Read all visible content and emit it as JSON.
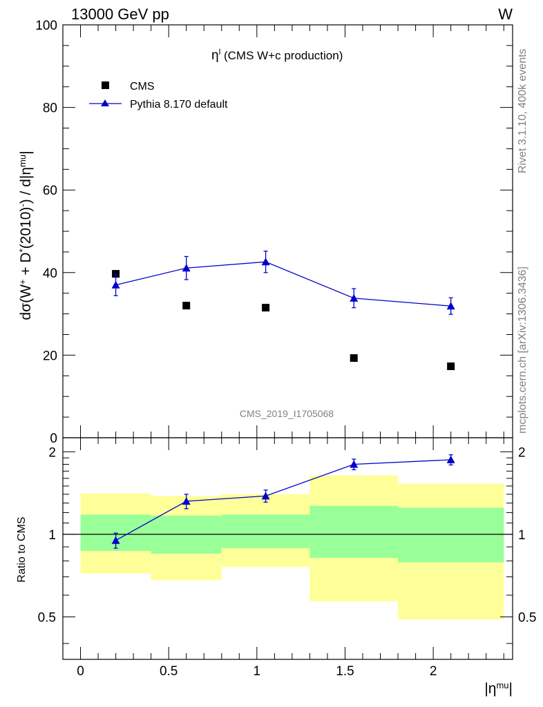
{
  "header": {
    "left_title": "13000 GeV pp",
    "right_title": "W"
  },
  "side_labels": {
    "rivet": "Rivet 3.1.10,  400k events",
    "url": "mcplots.cern.ch [arXiv:1306.3436]"
  },
  "watermark": "CMS_2019_I1705068",
  "colors": {
    "mc": "#0000cc",
    "data": "#000000",
    "band_inner": "#99ff99",
    "band_outer": "#ffff99"
  },
  "chart_data": [
    {
      "type": "scatter",
      "title": "η^l (CMS W+c production)",
      "ylabel": "dσ(W+ + D*(2010)-) / d|η^mu|",
      "ylim": [
        0,
        100
      ],
      "yticks": [
        "0",
        "20",
        "40",
        "60",
        "80",
        "100"
      ],
      "legend_placement": "top-left",
      "series": [
        {
          "name": "CMS",
          "marker": "square",
          "x": [
            0.2,
            0.6,
            1.05,
            1.55,
            2.1
          ],
          "y": [
            39.7,
            32.0,
            31.5,
            19.3,
            17.3
          ]
        },
        {
          "name": "Pythia 8.170 default",
          "marker": "triangle",
          "line": true,
          "x": [
            0.2,
            0.6,
            1.05,
            1.55,
            2.1
          ],
          "y": [
            37.0,
            41.1,
            42.6,
            33.8,
            31.9
          ],
          "yerr": [
            2.6,
            2.8,
            2.6,
            2.3,
            2.0
          ]
        }
      ]
    },
    {
      "type": "scatter",
      "ylabel": "Ratio to CMS",
      "xlabel": "|η^mu|",
      "xlim": [
        -0.1,
        2.45
      ],
      "ylim": [
        0.35,
        2.25
      ],
      "xticks": [
        "0",
        "0.5",
        "1",
        "1.5",
        "2"
      ],
      "yticks": [
        "0.5",
        "1",
        "2"
      ],
      "bins": [
        [
          0,
          0.4
        ],
        [
          0.4,
          0.8
        ],
        [
          0.8,
          1.3
        ],
        [
          1.3,
          1.8
        ],
        [
          1.8,
          2.4
        ]
      ],
      "band_inner": [
        [
          0.87,
          1.18
        ],
        [
          0.85,
          1.17
        ],
        [
          0.89,
          1.18
        ],
        [
          0.82,
          1.27
        ],
        [
          0.79,
          1.25
        ]
      ],
      "band_outer": [
        [
          0.72,
          1.41
        ],
        [
          0.68,
          1.38
        ],
        [
          0.76,
          1.4
        ],
        [
          0.57,
          1.64
        ],
        [
          0.49,
          1.53
        ]
      ],
      "series": [
        {
          "name": "Pythia 8.170 default",
          "x": [
            0.2,
            0.6,
            1.05,
            1.55,
            2.1
          ],
          "y": [
            0.95,
            1.32,
            1.38,
            1.8,
            1.87
          ],
          "yerr": [
            0.06,
            0.08,
            0.07,
            0.08,
            0.08
          ]
        }
      ]
    }
  ]
}
